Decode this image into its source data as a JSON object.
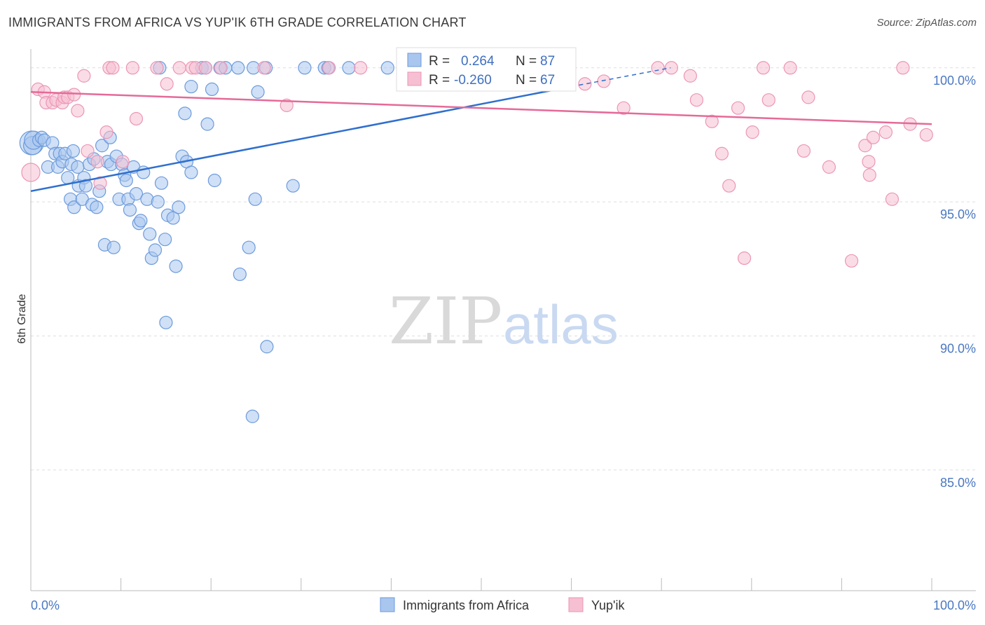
{
  "title": "IMMIGRANTS FROM AFRICA VS YUP'IK 6TH GRADE CORRELATION CHART",
  "source": "Source: ZipAtlas.com",
  "watermark": {
    "zip": "ZIP",
    "atlas": "atlas"
  },
  "colors": {
    "blue_fill": "#a9c6ee",
    "blue_stroke": "#6c9bdc",
    "blue_line": "#2f6fce",
    "pink_fill": "#f6bfd2",
    "pink_stroke": "#ec96b6",
    "pink_line": "#e56a98",
    "grid": "#dddddd",
    "tick_text": "#4a78c2"
  },
  "legend": {
    "items": [
      {
        "label": "Immigrants from Africa",
        "color": "blue"
      },
      {
        "label": "Yup'ik",
        "color": "pink"
      }
    ]
  },
  "stats": {
    "rows": [
      {
        "r_label": "R =",
        "r_value": "0.264",
        "n_label": "N =",
        "n_value": "87",
        "color": "blue"
      },
      {
        "r_label": "R =",
        "r_value": "-0.260",
        "n_label": "N =",
        "n_value": "67",
        "color": "pink"
      }
    ]
  },
  "chart_data": {
    "type": "scatter",
    "title": "IMMIGRANTS FROM AFRICA VS YUP'IK 6TH GRADE CORRELATION CHART",
    "xlabel": "",
    "ylabel": "6th Grade",
    "xlim": [
      0,
      100
    ],
    "ylim": [
      80.5,
      100.7
    ],
    "x_tick_labels": [
      "0.0%",
      "100.0%"
    ],
    "y_ticks": [
      85,
      90,
      95,
      100
    ],
    "y_tick_labels": [
      "85.0%",
      "90.0%",
      "95.0%",
      "100.0%"
    ],
    "grid": true,
    "legend_position": "bottom-center",
    "series": [
      {
        "name": "Immigrants from Africa",
        "color": "blue",
        "trend": {
          "x": [
            0,
            60
          ],
          "y": [
            95.4,
            99.3
          ],
          "dashed_to": [
            71,
            100.0
          ]
        },
        "points": [
          [
            0.1,
            97.2,
            3
          ],
          [
            0.2,
            97.1,
            2
          ],
          [
            0.3,
            97.3,
            2
          ],
          [
            0.9,
            97.3,
            1
          ],
          [
            1.2,
            97.4,
            1
          ],
          [
            1.5,
            97.3,
            1
          ],
          [
            1.9,
            96.3,
            1
          ],
          [
            2.4,
            97.2,
            1
          ],
          [
            2.7,
            96.8,
            1
          ],
          [
            3.0,
            96.3,
            1
          ],
          [
            3.2,
            96.8,
            1
          ],
          [
            3.5,
            96.5,
            1
          ],
          [
            3.8,
            96.8,
            1
          ],
          [
            4.1,
            95.9,
            1
          ],
          [
            4.4,
            95.1,
            1
          ],
          [
            4.5,
            96.4,
            1
          ],
          [
            4.7,
            96.9,
            1
          ],
          [
            4.8,
            94.8,
            1
          ],
          [
            5.2,
            96.3,
            1
          ],
          [
            5.3,
            95.6,
            1
          ],
          [
            5.7,
            95.1,
            1
          ],
          [
            5.9,
            95.9,
            1
          ],
          [
            6.1,
            95.6,
            1
          ],
          [
            6.5,
            96.4,
            1
          ],
          [
            6.8,
            94.9,
            1
          ],
          [
            7.0,
            96.6,
            1
          ],
          [
            7.3,
            94.8,
            1
          ],
          [
            7.6,
            95.4,
            1
          ],
          [
            7.9,
            97.1,
            1
          ],
          [
            8.2,
            93.4,
            1
          ],
          [
            8.5,
            96.5,
            1
          ],
          [
            8.8,
            97.4,
            1
          ],
          [
            8.9,
            96.4,
            1
          ],
          [
            9.2,
            93.3,
            1
          ],
          [
            9.5,
            96.7,
            1
          ],
          [
            9.8,
            95.1,
            1
          ],
          [
            10.1,
            96.4,
            1
          ],
          [
            10.4,
            96.0,
            1
          ],
          [
            10.6,
            95.8,
            1
          ],
          [
            10.8,
            95.1,
            1
          ],
          [
            11.0,
            94.7,
            1
          ],
          [
            11.4,
            96.3,
            1
          ],
          [
            11.7,
            95.3,
            1
          ],
          [
            12.0,
            94.2,
            1
          ],
          [
            12.2,
            94.3,
            1
          ],
          [
            12.5,
            96.1,
            1
          ],
          [
            12.9,
            95.1,
            1
          ],
          [
            13.2,
            93.8,
            1
          ],
          [
            13.4,
            92.9,
            1
          ],
          [
            13.8,
            93.2,
            1
          ],
          [
            14.1,
            95.0,
            1
          ],
          [
            14.5,
            95.7,
            1
          ],
          [
            14.9,
            93.6,
            1
          ],
          [
            15.2,
            94.5,
            1
          ],
          [
            15.8,
            94.4,
            1
          ],
          [
            16.1,
            92.6,
            1
          ],
          [
            16.4,
            94.8,
            1
          ],
          [
            16.8,
            96.7,
            1
          ],
          [
            17.1,
            98.3,
            1
          ],
          [
            17.3,
            96.5,
            1
          ],
          [
            17.8,
            96.1,
            1
          ],
          [
            15.0,
            90.5,
            1
          ],
          [
            14.3,
            100.0,
            1
          ],
          [
            19.0,
            100.0,
            1
          ],
          [
            19.4,
            100.0,
            1
          ],
          [
            19.6,
            97.9,
            1
          ],
          [
            20.1,
            99.2,
            1
          ],
          [
            20.4,
            95.8,
            1
          ],
          [
            21.0,
            100.0,
            1
          ],
          [
            21.6,
            100.0,
            1
          ],
          [
            23.2,
            92.3,
            1
          ],
          [
            24.7,
            100.0,
            1
          ],
          [
            23.0,
            100.0,
            1
          ],
          [
            24.2,
            93.3,
            1
          ],
          [
            24.6,
            87.0,
            1
          ],
          [
            24.9,
            95.1,
            1
          ],
          [
            25.2,
            99.1,
            1
          ],
          [
            26.1,
            100.0,
            1
          ],
          [
            26.2,
            89.6,
            1
          ],
          [
            29.1,
            95.6,
            1
          ],
          [
            30.4,
            100.0,
            1
          ],
          [
            32.6,
            100.0,
            1
          ],
          [
            33.0,
            100.0,
            1
          ],
          [
            35.3,
            100.0,
            1
          ],
          [
            39.6,
            100.0,
            1
          ],
          [
            17.8,
            99.3,
            1
          ]
        ]
      },
      {
        "name": "Yup'ik",
        "color": "pink",
        "trend": {
          "x": [
            0,
            100
          ],
          "y": [
            99.1,
            97.9
          ]
        },
        "points": [
          [
            0.0,
            96.1,
            2
          ],
          [
            0.8,
            99.2,
            1
          ],
          [
            1.5,
            99.1,
            1
          ],
          [
            1.7,
            98.7,
            1
          ],
          [
            2.4,
            98.7,
            1
          ],
          [
            2.8,
            98.8,
            1
          ],
          [
            3.5,
            98.7,
            1
          ],
          [
            3.7,
            98.9,
            1
          ],
          [
            4.1,
            98.9,
            1
          ],
          [
            4.8,
            99.0,
            1
          ],
          [
            5.2,
            98.4,
            1
          ],
          [
            5.9,
            99.7,
            1
          ],
          [
            6.3,
            96.9,
            1
          ],
          [
            7.4,
            96.5,
            1
          ],
          [
            7.7,
            95.7,
            1
          ],
          [
            8.4,
            97.6,
            1
          ],
          [
            8.7,
            100.0,
            1
          ],
          [
            9.1,
            100.0,
            1
          ],
          [
            10.2,
            96.5,
            1
          ],
          [
            11.3,
            100.0,
            1
          ],
          [
            11.7,
            98.1,
            1
          ],
          [
            14.0,
            100.0,
            1
          ],
          [
            15.1,
            99.4,
            1
          ],
          [
            16.5,
            100.0,
            1
          ],
          [
            17.9,
            100.0,
            1
          ],
          [
            18.3,
            100.0,
            1
          ],
          [
            19.4,
            100.0,
            1
          ],
          [
            21.1,
            100.0,
            1
          ],
          [
            25.9,
            100.0,
            1
          ],
          [
            28.4,
            98.6,
            1
          ],
          [
            33.1,
            100.0,
            1
          ],
          [
            36.6,
            100.0,
            1
          ],
          [
            41.5,
            100.0,
            1
          ],
          [
            43.5,
            99.4,
            1
          ],
          [
            44.2,
            99.4,
            1
          ],
          [
            57.7,
            99.5,
            1
          ],
          [
            59.1,
            99.7,
            1
          ],
          [
            59.8,
            100.0,
            1
          ],
          [
            61.5,
            99.4,
            1
          ],
          [
            63.6,
            99.5,
            1
          ],
          [
            65.8,
            98.5,
            1
          ],
          [
            69.6,
            100.0,
            1
          ],
          [
            71.1,
            100.0,
            1
          ],
          [
            73.2,
            99.7,
            1
          ],
          [
            73.9,
            98.8,
            1
          ],
          [
            75.6,
            98.0,
            1
          ],
          [
            76.7,
            96.8,
            1
          ],
          [
            77.5,
            95.6,
            1
          ],
          [
            78.5,
            98.5,
            1
          ],
          [
            79.2,
            92.9,
            1
          ],
          [
            80.1,
            97.6,
            1
          ],
          [
            81.3,
            100.0,
            1
          ],
          [
            81.9,
            98.8,
            1
          ],
          [
            84.3,
            100.0,
            1
          ],
          [
            85.8,
            96.9,
            1
          ],
          [
            86.3,
            98.9,
            1
          ],
          [
            88.6,
            96.3,
            1
          ],
          [
            91.1,
            92.8,
            1
          ],
          [
            92.6,
            97.1,
            1
          ],
          [
            93.0,
            96.5,
            1
          ],
          [
            93.1,
            96.0,
            1
          ],
          [
            93.5,
            97.4,
            1
          ],
          [
            94.9,
            97.6,
            1
          ],
          [
            95.6,
            95.1,
            1
          ],
          [
            96.8,
            100.0,
            1
          ],
          [
            97.6,
            97.9,
            1
          ],
          [
            99.4,
            97.5,
            1
          ]
        ]
      }
    ]
  }
}
